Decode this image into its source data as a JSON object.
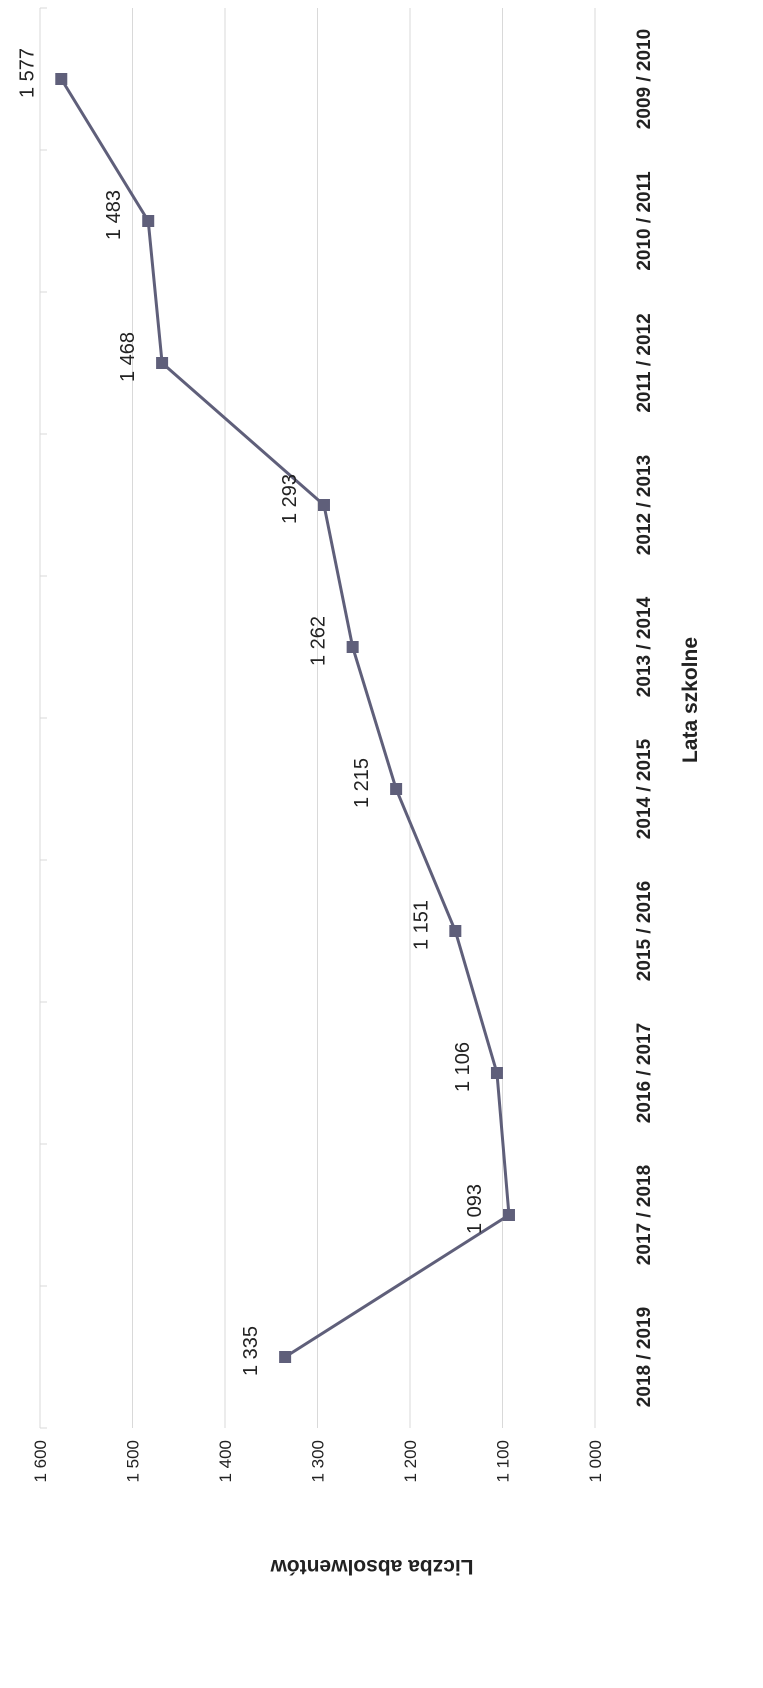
{
  "chart_data": {
    "type": "line",
    "orientation": "rotated-90-clockwise",
    "categories": [
      "2009 / 2010",
      "2010 / 2011",
      "2011 / 2012",
      "2012 / 2013",
      "2013 / 2014",
      "2014 / 2015",
      "2015 / 2016",
      "2016 / 2017",
      "2017 / 2018",
      "2018 / 2019"
    ],
    "values": [
      1577,
      1483,
      1468,
      1293,
      1262,
      1215,
      1151,
      1106,
      1093,
      1335
    ],
    "data_labels": [
      "1 577",
      "1 483",
      "1 468",
      "1 293",
      "1 262",
      "1 215",
      "1 151",
      "1 106",
      "1 093",
      "1 335"
    ],
    "ylim": [
      1000,
      1600
    ],
    "yticks": [
      {
        "value": 1600,
        "label": "1 600"
      },
      {
        "value": 1500,
        "label": "1 500"
      },
      {
        "value": 1400,
        "label": "1 400"
      },
      {
        "value": 1300,
        "label": "1 300"
      },
      {
        "value": 1200,
        "label": "1 200"
      },
      {
        "value": 1100,
        "label": "1 100"
      },
      {
        "value": 1000,
        "label": "1 000"
      }
    ],
    "xlabel": "Lata szkolne",
    "ylabel": "Liczba absolwentów",
    "grid": true,
    "legend": "none",
    "series_color": "#5f5f7a"
  }
}
